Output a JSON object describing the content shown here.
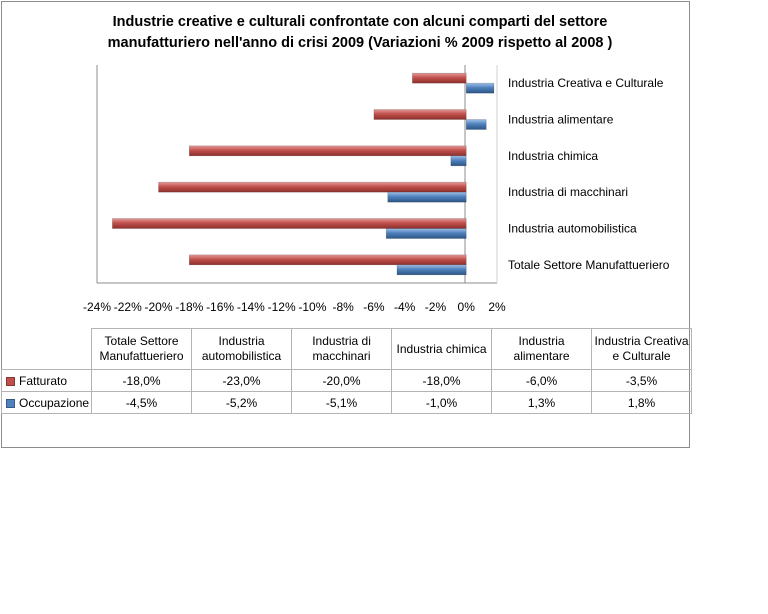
{
  "chart_data": {
    "type": "bar",
    "orientation": "horizontal",
    "title": "Industrie creative e culturali confrontate con alcuni comparti  del settore manufatturiero nell'anno di crisi 2009 (Variazioni % 2009 rispetto al 2008 )",
    "categories": [
      "Industria Creativa e Culturale",
      "Industria alimentare",
      "Industria chimica",
      "Industria di macchinari",
      "Industria automobilistica",
      "Totale Settore Manufattueriero"
    ],
    "series": [
      {
        "name": "Fatturato",
        "color": "#c0504d",
        "values": [
          -3.5,
          -6.0,
          -18.0,
          -20.0,
          -23.0,
          -18.0
        ]
      },
      {
        "name": "Occupazione",
        "color": "#4f81bd",
        "values": [
          1.8,
          1.3,
          -1.0,
          -5.1,
          -5.2,
          -4.5
        ]
      }
    ],
    "xlim": [
      -24,
      2
    ],
    "xticks": [
      "-24%",
      "-22%",
      "-20%",
      "-18%",
      "-16%",
      "-14%",
      "-12%",
      "-10%",
      "-8%",
      "-6%",
      "-4%",
      "-2%",
      "0%",
      "2%"
    ],
    "grid": false,
    "legend": "data-table"
  },
  "table": {
    "headers": [
      [
        "Totale Settore",
        "Manufattueriero"
      ],
      [
        "Industria",
        "automobilistica"
      ],
      [
        "Industria di",
        "macchinari"
      ],
      [
        "Industria chimica"
      ],
      [
        "Industria",
        "alimentare"
      ],
      [
        "Industria Creativa",
        "e Culturale"
      ]
    ],
    "rows": [
      {
        "label": "Fatturato",
        "color": "#c0504d",
        "cells": [
          "-18,0%",
          "-23,0%",
          "-20,0%",
          "-18,0%",
          "-6,0%",
          "-3,5%"
        ]
      },
      {
        "label": "Occupazione",
        "color": "#4f81bd",
        "cells": [
          "-4,5%",
          "-5,2%",
          "-5,1%",
          "-1,0%",
          "1,3%",
          "1,8%"
        ]
      }
    ]
  }
}
